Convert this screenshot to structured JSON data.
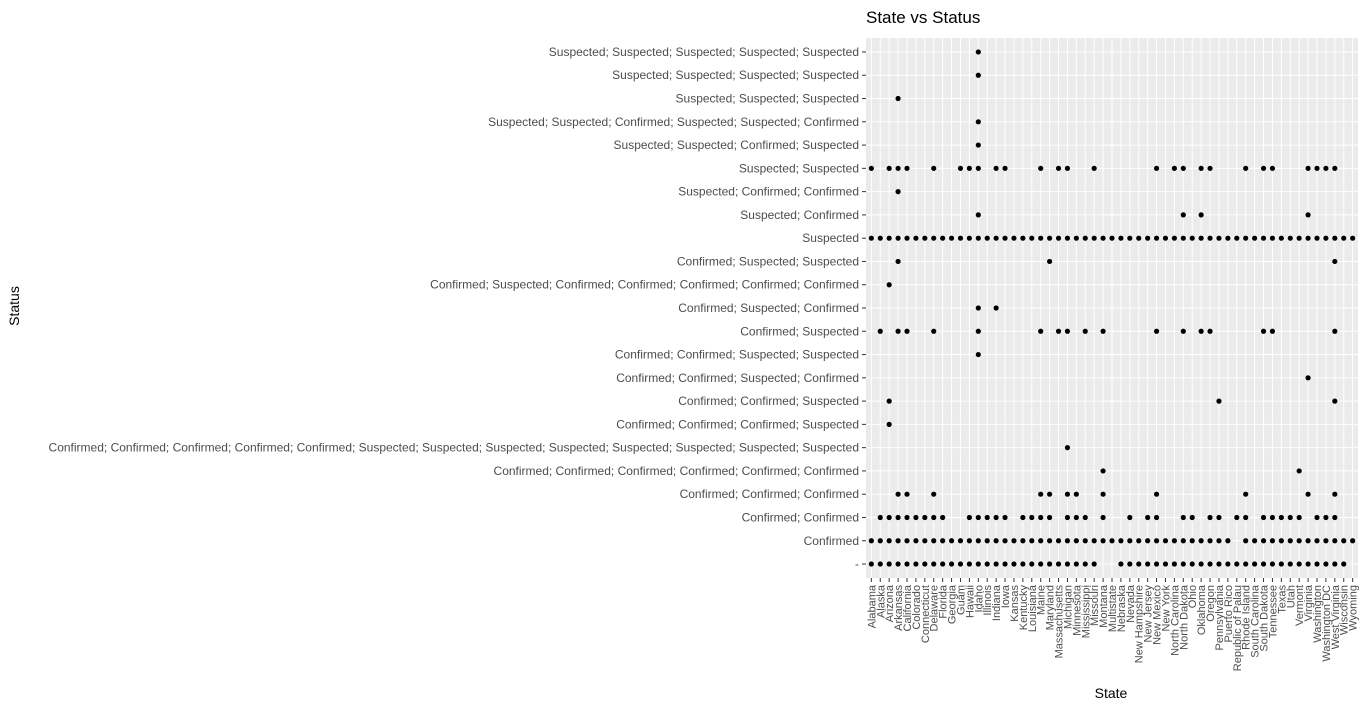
{
  "chart_data": {
    "type": "scatter",
    "title": "State vs Status",
    "xlabel": "State",
    "ylabel": "Status",
    "grid": true,
    "x_categories": [
      "Alabama",
      "Alaska",
      "Arizona",
      "Arkansas",
      "California",
      "Colorado",
      "Connecticut",
      "Delaware",
      "Florida",
      "Georgia",
      "Guam",
      "Hawaii",
      "Idaho",
      "Illinois",
      "Indiana",
      "Iowa",
      "Kansas",
      "Kentucky",
      "Louisiana",
      "Maine",
      "Maryland",
      "Massachusetts",
      "Michigan",
      "Minnesota",
      "Mississippi",
      "Missouri",
      "Montana",
      "Multistate",
      "Nebraska",
      "Nevada",
      "New Hampshire",
      "New Jersey",
      "New Mexico",
      "New York",
      "North Carolina",
      "North Dakota",
      "Ohio",
      "Oklahoma",
      "Oregon",
      "Pennsylvania",
      "Puerto Rico",
      "Republic of Palau",
      "Rhode Island",
      "South Carolina",
      "South Dakota",
      "Tennessee",
      "Texas",
      "Utah",
      "Vermont",
      "Virginia",
      "Washington",
      "Washington DC",
      "West Virginia",
      "Wisconsin",
      "Wyoming"
    ],
    "y_categories": [
      "-",
      "Confirmed",
      "Confirmed; Confirmed",
      "Confirmed; Confirmed; Confirmed",
      "Confirmed; Confirmed; Confirmed; Confirmed; Confirmed; Confirmed",
      "Confirmed; Confirmed; Confirmed; Confirmed; Confirmed; Suspected; Suspected; Suspected; Suspected; Suspected; Suspected; Suspected; Suspected",
      "Confirmed; Confirmed; Confirmed; Suspected",
      "Confirmed; Confirmed; Suspected",
      "Confirmed; Confirmed; Suspected; Confirmed",
      "Confirmed; Confirmed; Suspected; Suspected",
      "Confirmed; Suspected",
      "Confirmed; Suspected; Confirmed",
      "Confirmed; Suspected; Confirmed; Confirmed; Confirmed; Confirmed; Confirmed",
      "Confirmed; Suspected; Suspected",
      "Suspected",
      "Suspected; Confirmed",
      "Suspected; Confirmed; Confirmed",
      "Suspected; Suspected",
      "Suspected; Suspected; Confirmed; Suspected",
      "Suspected; Suspected; Confirmed; Suspected; Suspected; Confirmed",
      "Suspected; Suspected; Suspected",
      "Suspected; Suspected; Suspected; Suspected",
      "Suspected; Suspected; Suspected; Suspected; Suspected"
    ],
    "points": [
      {
        "y": "-",
        "x": [
          "Alabama",
          "Alaska",
          "Arizona",
          "Arkansas",
          "California",
          "Colorado",
          "Connecticut",
          "Delaware",
          "Florida",
          "Georgia",
          "Guam",
          "Hawaii",
          "Idaho",
          "Illinois",
          "Indiana",
          "Iowa",
          "Kansas",
          "Kentucky",
          "Louisiana",
          "Maine",
          "Maryland",
          "Massachusetts",
          "Michigan",
          "Minnesota",
          "Mississippi",
          "Missouri",
          "Nebraska",
          "Nevada",
          "New Hampshire",
          "New Jersey",
          "New Mexico",
          "New York",
          "North Carolina",
          "North Dakota",
          "Ohio",
          "Oklahoma",
          "Oregon",
          "Pennsylvania",
          "Puerto Rico",
          "Republic of Palau",
          "Rhode Island",
          "South Carolina",
          "South Dakota",
          "Tennessee",
          "Texas",
          "Utah",
          "Vermont",
          "Virginia",
          "Washington",
          "Washington DC",
          "West Virginia",
          "Wisconsin"
        ]
      },
      {
        "y": "Confirmed",
        "x": [
          "Alabama",
          "Alaska",
          "Arizona",
          "Arkansas",
          "California",
          "Colorado",
          "Connecticut",
          "Delaware",
          "Florida",
          "Georgia",
          "Guam",
          "Hawaii",
          "Idaho",
          "Illinois",
          "Indiana",
          "Iowa",
          "Kansas",
          "Kentucky",
          "Louisiana",
          "Maine",
          "Maryland",
          "Massachusetts",
          "Michigan",
          "Minnesota",
          "Mississippi",
          "Missouri",
          "Montana",
          "Multistate",
          "Nebraska",
          "Nevada",
          "New Hampshire",
          "New Jersey",
          "New Mexico",
          "New York",
          "North Carolina",
          "North Dakota",
          "Ohio",
          "Oklahoma",
          "Oregon",
          "Pennsylvania",
          "Puerto Rico",
          "Rhode Island",
          "South Carolina",
          "South Dakota",
          "Tennessee",
          "Texas",
          "Utah",
          "Vermont",
          "Virginia",
          "Washington",
          "Washington DC",
          "West Virginia",
          "Wisconsin",
          "Wyoming"
        ]
      },
      {
        "y": "Confirmed; Confirmed",
        "x": [
          "Alaska",
          "Arizona",
          "Arkansas",
          "California",
          "Colorado",
          "Connecticut",
          "Delaware",
          "Florida",
          "Hawaii",
          "Idaho",
          "Illinois",
          "Indiana",
          "Iowa",
          "Kentucky",
          "Louisiana",
          "Maine",
          "Maryland",
          "Michigan",
          "Minnesota",
          "Mississippi",
          "Montana",
          "Nevada",
          "New Jersey",
          "New Mexico",
          "North Dakota",
          "Ohio",
          "Oregon",
          "Pennsylvania",
          "Republic of Palau",
          "Rhode Island",
          "South Dakota",
          "Tennessee",
          "Texas",
          "Utah",
          "Vermont",
          "Washington",
          "Washington DC",
          "West Virginia"
        ]
      },
      {
        "y": "Confirmed; Confirmed; Confirmed",
        "x": [
          "Arkansas",
          "California",
          "Delaware",
          "Maine",
          "Maryland",
          "Michigan",
          "Minnesota",
          "Montana",
          "New Mexico",
          "Rhode Island",
          "Virginia",
          "West Virginia"
        ]
      },
      {
        "y": "Confirmed; Confirmed; Confirmed; Confirmed; Confirmed; Confirmed",
        "x": [
          "Montana",
          "Vermont"
        ]
      },
      {
        "y": "Confirmed; Confirmed; Confirmed; Confirmed; Confirmed; Suspected; Suspected; Suspected; Suspected; Suspected; Suspected; Suspected; Suspected",
        "x": [
          "Michigan"
        ]
      },
      {
        "y": "Confirmed; Confirmed; Confirmed; Suspected",
        "x": [
          "Arizona"
        ]
      },
      {
        "y": "Confirmed; Confirmed; Suspected",
        "x": [
          "Arizona",
          "Pennsylvania",
          "West Virginia"
        ]
      },
      {
        "y": "Confirmed; Confirmed; Suspected; Confirmed",
        "x": [
          "Virginia"
        ]
      },
      {
        "y": "Confirmed; Confirmed; Suspected; Suspected",
        "x": [
          "Idaho"
        ]
      },
      {
        "y": "Confirmed; Suspected",
        "x": [
          "Alaska",
          "Arkansas",
          "California",
          "Delaware",
          "Idaho",
          "Maine",
          "Massachusetts",
          "Michigan",
          "Mississippi",
          "Montana",
          "New Mexico",
          "North Dakota",
          "Oklahoma",
          "Oregon",
          "South Dakota",
          "Tennessee",
          "West Virginia"
        ]
      },
      {
        "y": "Confirmed; Suspected; Confirmed",
        "x": [
          "Idaho",
          "Indiana"
        ]
      },
      {
        "y": "Confirmed; Suspected; Confirmed; Confirmed; Confirmed; Confirmed; Confirmed",
        "x": [
          "Arizona"
        ]
      },
      {
        "y": "Confirmed; Suspected; Suspected",
        "x": [
          "Arkansas",
          "Maryland",
          "West Virginia"
        ]
      },
      {
        "y": "Suspected",
        "x": [
          "Alabama",
          "Alaska",
          "Arizona",
          "Arkansas",
          "California",
          "Colorado",
          "Connecticut",
          "Delaware",
          "Florida",
          "Georgia",
          "Guam",
          "Hawaii",
          "Idaho",
          "Illinois",
          "Indiana",
          "Iowa",
          "Kansas",
          "Kentucky",
          "Louisiana",
          "Maine",
          "Maryland",
          "Massachusetts",
          "Michigan",
          "Minnesota",
          "Mississippi",
          "Missouri",
          "Montana",
          "Multistate",
          "Nebraska",
          "Nevada",
          "New Hampshire",
          "New Jersey",
          "New Mexico",
          "New York",
          "North Carolina",
          "North Dakota",
          "Ohio",
          "Oklahoma",
          "Oregon",
          "Pennsylvania",
          "Puerto Rico",
          "Republic of Palau",
          "Rhode Island",
          "South Carolina",
          "South Dakota",
          "Tennessee",
          "Texas",
          "Utah",
          "Vermont",
          "Virginia",
          "Washington",
          "Washington DC",
          "West Virginia",
          "Wisconsin",
          "Wyoming"
        ]
      },
      {
        "y": "Suspected; Confirmed",
        "x": [
          "Idaho",
          "North Dakota",
          "Oklahoma",
          "Virginia"
        ]
      },
      {
        "y": "Suspected; Confirmed; Confirmed",
        "x": [
          "Arkansas"
        ]
      },
      {
        "y": "Suspected; Suspected",
        "x": [
          "Alabama",
          "Arizona",
          "Arkansas",
          "California",
          "Delaware",
          "Guam",
          "Hawaii",
          "Idaho",
          "Indiana",
          "Iowa",
          "Maine",
          "Massachusetts",
          "Michigan",
          "Missouri",
          "New Mexico",
          "North Carolina",
          "North Dakota",
          "Oklahoma",
          "Oregon",
          "Rhode Island",
          "South Dakota",
          "Tennessee",
          "Virginia",
          "Washington",
          "Washington DC",
          "West Virginia"
        ]
      },
      {
        "y": "Suspected; Suspected; Confirmed; Suspected",
        "x": [
          "Idaho"
        ]
      },
      {
        "y": "Suspected; Suspected; Confirmed; Suspected; Suspected; Confirmed",
        "x": [
          "Idaho"
        ]
      },
      {
        "y": "Suspected; Suspected; Suspected",
        "x": [
          "Arkansas"
        ]
      },
      {
        "y": "Suspected; Suspected; Suspected; Suspected",
        "x": [
          "Idaho"
        ]
      },
      {
        "y": "Suspected; Suspected; Suspected; Suspected; Suspected",
        "x": [
          "Idaho"
        ]
      }
    ]
  }
}
